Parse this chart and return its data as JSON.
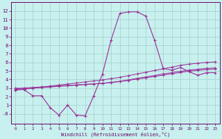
{
  "xlabel": "Windchill (Refroidissement éolien,°C)",
  "bg_color": "#c8f0ee",
  "grid_color": "#a8d4d0",
  "line_color": "#993399",
  "axis_color": "#660066",
  "tick_label_color": "#660066",
  "xlabel_color": "#660066",
  "xlim": [
    -0.5,
    23.5
  ],
  "ylim": [
    -1.2,
    13.0
  ],
  "yticks": [
    0,
    1,
    2,
    3,
    4,
    5,
    6,
    7,
    8,
    9,
    10,
    11,
    12
  ],
  "xticks": [
    0,
    1,
    2,
    3,
    4,
    5,
    6,
    7,
    8,
    9,
    10,
    11,
    12,
    13,
    14,
    15,
    16,
    17,
    18,
    19,
    20,
    21,
    22,
    23
  ],
  "x_data": [
    0,
    1,
    2,
    3,
    4,
    5,
    6,
    7,
    8,
    9,
    10,
    11,
    12,
    13,
    14,
    15,
    16,
    17,
    18,
    19,
    20,
    21,
    22,
    23
  ],
  "y_jagged": [
    3.0,
    2.8,
    2.1,
    2.1,
    0.7,
    -0.15,
    1.0,
    -0.15,
    -0.25,
    2.1,
    4.6,
    8.6,
    11.7,
    11.9,
    11.9,
    11.4,
    8.6,
    5.3,
    5.1,
    5.4,
    4.9,
    4.5,
    4.8,
    4.8
  ],
  "y_line1": [
    2.95,
    3.01,
    3.07,
    3.13,
    3.19,
    3.25,
    3.31,
    3.37,
    3.43,
    3.49,
    3.55,
    3.65,
    3.75,
    3.9,
    4.05,
    4.2,
    4.35,
    4.52,
    4.67,
    4.82,
    4.97,
    5.07,
    5.17,
    5.22
  ],
  "y_line2": [
    2.85,
    2.92,
    2.99,
    3.06,
    3.13,
    3.2,
    3.27,
    3.34,
    3.41,
    3.48,
    3.55,
    3.67,
    3.79,
    3.96,
    4.13,
    4.3,
    4.47,
    4.65,
    4.8,
    4.95,
    5.1,
    5.2,
    5.3,
    5.35
  ],
  "y_line3": [
    2.75,
    2.87,
    2.99,
    3.11,
    3.23,
    3.35,
    3.47,
    3.59,
    3.71,
    3.83,
    3.95,
    4.1,
    4.25,
    4.45,
    4.65,
    4.85,
    5.05,
    5.25,
    5.45,
    5.65,
    5.8,
    5.9,
    6.0,
    6.05
  ]
}
